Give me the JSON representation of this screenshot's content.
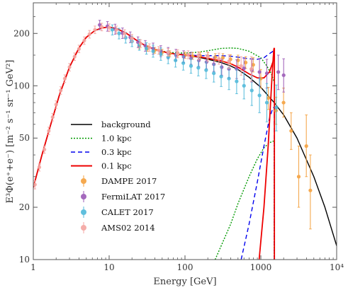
{
  "chart_data": {
    "type": "scatter",
    "xscale": "log",
    "yscale": "log",
    "xlim": [
      1,
      10000
    ],
    "ylim": [
      10,
      300
    ],
    "xlabel": "Energy [GeV]",
    "ylabel": "E³Φ(e⁺+e⁻) [m⁻² s⁻¹ sr⁻¹ GeV²]",
    "x_ticks": [
      {
        "value": 1,
        "label": "1"
      },
      {
        "value": 10,
        "label": "10"
      },
      {
        "value": 100,
        "label": "100"
      },
      {
        "value": 1000,
        "label": "1000"
      },
      {
        "value": 10000,
        "label": "10⁴"
      }
    ],
    "y_ticks": [
      {
        "value": 10,
        "label": "10"
      },
      {
        "value": 20,
        "label": "20"
      },
      {
        "value": 50,
        "label": "50"
      },
      {
        "value": 100,
        "label": "100"
      },
      {
        "value": 200,
        "label": "200"
      }
    ],
    "legend_position": "lower-left",
    "lines": [
      {
        "name": "background",
        "color": "#000000",
        "dash": "solid",
        "width": 1.4,
        "x": [
          1,
          1.3,
          1.7,
          2.2,
          3,
          4,
          5,
          6.5,
          8,
          10,
          13,
          17,
          22,
          30,
          40,
          55,
          70,
          100,
          150,
          200,
          300,
          400,
          500,
          700,
          1000,
          1500,
          2000,
          3000,
          5000,
          7000,
          10000
        ],
        "y": [
          26,
          40,
          60,
          88,
          128,
          165,
          190,
          208,
          215,
          218,
          212,
          200,
          185,
          170,
          162,
          156,
          153,
          150,
          146,
          142,
          136,
          130,
          124,
          112,
          98,
          80,
          68,
          50,
          30,
          20,
          12
        ]
      },
      {
        "name": "1.0 kpc",
        "color": "#009900",
        "dash": "2,2",
        "width": 1.4,
        "x": [
          1,
          1.3,
          1.7,
          2.2,
          3,
          4,
          5,
          6.5,
          8,
          10,
          13,
          17,
          22,
          30,
          40,
          55,
          70,
          100,
          150,
          200,
          300,
          400,
          500,
          700,
          1000,
          1200,
          1400,
          1500
        ],
        "y": [
          26,
          40,
          60,
          88,
          128,
          165,
          190,
          208,
          215,
          218,
          212,
          200,
          185,
          170,
          162,
          157,
          155,
          154,
          156,
          159,
          164,
          165,
          164,
          158,
          145,
          130,
          115,
          105
        ]
      },
      {
        "name": "0.3 kpc",
        "color": "#0000ee",
        "dash": "6,4",
        "width": 1.4,
        "x": [
          1,
          1.3,
          1.7,
          2.2,
          3,
          4,
          5,
          6.5,
          8,
          10,
          13,
          17,
          22,
          30,
          40,
          55,
          70,
          100,
          150,
          200,
          300,
          400,
          500,
          700,
          900,
          1100,
          1300,
          1450,
          1500
        ],
        "y": [
          26,
          40,
          60,
          88,
          128,
          165,
          190,
          208,
          215,
          218,
          212,
          200,
          185,
          170,
          162,
          156,
          153,
          151,
          149,
          149,
          149,
          148,
          146,
          143,
          142,
          145,
          153,
          158,
          150
        ]
      },
      {
        "name": "0.1 kpc",
        "color": "#ee0000",
        "dash": "solid",
        "width": 1.8,
        "x": [
          1,
          1.3,
          1.7,
          2.2,
          3,
          4,
          5,
          6.5,
          8,
          10,
          13,
          17,
          22,
          30,
          40,
          55,
          70,
          100,
          150,
          200,
          300,
          400,
          500,
          700,
          900,
          1100,
          1300,
          1450,
          1500
        ],
        "y": [
          26,
          40,
          60,
          88,
          128,
          165,
          190,
          208,
          215,
          218,
          212,
          200,
          185,
          170,
          162,
          156,
          153,
          150,
          147,
          144,
          139,
          134,
          128,
          117,
          111,
          111,
          120,
          138,
          165
        ]
      },
      {
        "name": "1.0 kpc component",
        "color": "#009900",
        "dash": "2,2",
        "width": 1.4,
        "x": [
          250,
          300,
          400,
          500,
          700,
          900,
          1100,
          1300,
          1450,
          1500
        ],
        "y": [
          10,
          12,
          16,
          21,
          30,
          38,
          44,
          47,
          48,
          48
        ]
      },
      {
        "name": "0.3 kpc component",
        "color": "#0000ee",
        "dash": "6,4",
        "width": 1.4,
        "x": [
          550,
          700,
          900,
          1100,
          1300,
          1450,
          1500
        ],
        "y": [
          10,
          16,
          28,
          45,
          65,
          75,
          75
        ]
      },
      {
        "name": "0.1 kpc component",
        "color": "#ee0000",
        "dash": "solid",
        "width": 1.8,
        "x": [
          950,
          1100,
          1250,
          1400,
          1480,
          1500
        ],
        "y": [
          10,
          20,
          45,
          110,
          160,
          165
        ]
      }
    ],
    "vertical_lines": [
      {
        "x": 1500,
        "color": "#009900",
        "from": 10,
        "to": 48,
        "dash": "2,2",
        "width": 1.4
      },
      {
        "x": 1505,
        "color": "#0000ee",
        "from": 10,
        "to": 75,
        "dash": "6,4",
        "width": 1.4
      },
      {
        "x": 1510,
        "color": "#ee0000",
        "from": 10,
        "to": 165,
        "dash": "solid",
        "width": 1.8
      }
    ],
    "legend_lines": [
      {
        "label": "background",
        "color": "#000000",
        "dash": "solid",
        "width": 1.6
      },
      {
        "label": "1.0 kpc",
        "color": "#009900",
        "dash": "2,2",
        "width": 1.6
      },
      {
        "label": "0.3 kpc",
        "color": "#0000ee",
        "dash": "6,4",
        "width": 1.6
      },
      {
        "label": "0.1 kpc",
        "color": "#ee0000",
        "dash": "solid",
        "width": 2
      }
    ],
    "series": [
      {
        "name": "DAMPE 2017",
        "color": "#f5a03c",
        "opacity": 0.9,
        "points": [
          {
            "x": 25,
            "y": 169,
            "lo": 163,
            "hi": 175
          },
          {
            "x": 32,
            "y": 164,
            "lo": 158,
            "hi": 170
          },
          {
            "x": 40,
            "y": 160,
            "lo": 154,
            "hi": 166
          },
          {
            "x": 50,
            "y": 156,
            "lo": 150,
            "hi": 162
          },
          {
            "x": 63,
            "y": 153,
            "lo": 147,
            "hi": 159
          },
          {
            "x": 80,
            "y": 151,
            "lo": 145,
            "hi": 157
          },
          {
            "x": 100,
            "y": 150,
            "lo": 144,
            "hi": 156
          },
          {
            "x": 126,
            "y": 148,
            "lo": 142,
            "hi": 155
          },
          {
            "x": 158,
            "y": 149,
            "lo": 142,
            "hi": 156
          },
          {
            "x": 200,
            "y": 148,
            "lo": 141,
            "hi": 155
          },
          {
            "x": 251,
            "y": 146,
            "lo": 139,
            "hi": 153
          },
          {
            "x": 316,
            "y": 145,
            "lo": 137,
            "hi": 153
          },
          {
            "x": 398,
            "y": 142,
            "lo": 134,
            "hi": 151
          },
          {
            "x": 501,
            "y": 140,
            "lo": 131,
            "hi": 150
          },
          {
            "x": 631,
            "y": 136,
            "lo": 126,
            "hi": 147
          },
          {
            "x": 794,
            "y": 132,
            "lo": 120,
            "hi": 145
          },
          {
            "x": 1000,
            "y": 110,
            "lo": 97,
            "hi": 124
          },
          {
            "x": 1259,
            "y": 85,
            "lo": 73,
            "hi": 98
          },
          {
            "x": 1585,
            "y": 72,
            "lo": 60,
            "hi": 86
          },
          {
            "x": 1995,
            "y": 80,
            "lo": 66,
            "hi": 97
          },
          {
            "x": 2512,
            "y": 55,
            "lo": 43,
            "hi": 70
          },
          {
            "x": 3162,
            "y": 30,
            "lo": 20,
            "hi": 45
          },
          {
            "x": 3981,
            "y": 45,
            "lo": 30,
            "hi": 68
          },
          {
            "x": 4500,
            "y": 25,
            "lo": 15,
            "hi": 40
          }
        ]
      },
      {
        "name": "FermiLAT 2017",
        "color": "#9b59b6",
        "opacity": 0.9,
        "points": [
          {
            "x": 7.5,
            "y": 224,
            "lo": 210,
            "hi": 238
          },
          {
            "x": 9.5,
            "y": 220,
            "lo": 206,
            "hi": 234
          },
          {
            "x": 12,
            "y": 212,
            "lo": 198,
            "hi": 226
          },
          {
            "x": 15,
            "y": 201,
            "lo": 187,
            "hi": 215
          },
          {
            "x": 19,
            "y": 190,
            "lo": 177,
            "hi": 204
          },
          {
            "x": 24,
            "y": 178,
            "lo": 166,
            "hi": 191
          },
          {
            "x": 30,
            "y": 170,
            "lo": 158,
            "hi": 182
          },
          {
            "x": 38,
            "y": 164,
            "lo": 152,
            "hi": 176
          },
          {
            "x": 48,
            "y": 158,
            "lo": 147,
            "hi": 170
          },
          {
            "x": 60,
            "y": 154,
            "lo": 143,
            "hi": 166
          },
          {
            "x": 76,
            "y": 150,
            "lo": 139,
            "hi": 162
          },
          {
            "x": 96,
            "y": 147,
            "lo": 136,
            "hi": 159
          },
          {
            "x": 120,
            "y": 144,
            "lo": 133,
            "hi": 156
          },
          {
            "x": 152,
            "y": 140,
            "lo": 129,
            "hi": 152
          },
          {
            "x": 192,
            "y": 137,
            "lo": 125,
            "hi": 150
          },
          {
            "x": 240,
            "y": 133,
            "lo": 121,
            "hi": 146
          },
          {
            "x": 305,
            "y": 128,
            "lo": 115,
            "hi": 142
          },
          {
            "x": 380,
            "y": 125,
            "lo": 111,
            "hi": 140
          },
          {
            "x": 480,
            "y": 125,
            "lo": 110,
            "hi": 141
          },
          {
            "x": 600,
            "y": 126,
            "lo": 109,
            "hi": 144
          },
          {
            "x": 760,
            "y": 123,
            "lo": 105,
            "hi": 143
          },
          {
            "x": 960,
            "y": 120,
            "lo": 100,
            "hi": 143
          },
          {
            "x": 1200,
            "y": 118,
            "lo": 97,
            "hi": 142
          },
          {
            "x": 1700,
            "y": 120,
            "lo": 95,
            "hi": 150
          },
          {
            "x": 2000,
            "y": 115,
            "lo": 92,
            "hi": 143
          }
        ]
      },
      {
        "name": "CALET 2017",
        "color": "#45b5d8",
        "opacity": 0.85,
        "points": [
          {
            "x": 11,
            "y": 210,
            "lo": 196,
            "hi": 224
          },
          {
            "x": 13.5,
            "y": 200,
            "lo": 186,
            "hi": 214
          },
          {
            "x": 16.5,
            "y": 189,
            "lo": 176,
            "hi": 203
          },
          {
            "x": 20,
            "y": 180,
            "lo": 168,
            "hi": 193
          },
          {
            "x": 25,
            "y": 172,
            "lo": 160,
            "hi": 185
          },
          {
            "x": 31,
            "y": 164,
            "lo": 152,
            "hi": 177
          },
          {
            "x": 38,
            "y": 158,
            "lo": 146,
            "hi": 171
          },
          {
            "x": 48,
            "y": 152,
            "lo": 140,
            "hi": 165
          },
          {
            "x": 60,
            "y": 146,
            "lo": 134,
            "hi": 159
          },
          {
            "x": 75,
            "y": 140,
            "lo": 128,
            "hi": 153
          },
          {
            "x": 95,
            "y": 135,
            "lo": 123,
            "hi": 148
          },
          {
            "x": 120,
            "y": 130,
            "lo": 118,
            "hi": 143
          },
          {
            "x": 150,
            "y": 127,
            "lo": 114,
            "hi": 141
          },
          {
            "x": 190,
            "y": 123,
            "lo": 110,
            "hi": 137
          },
          {
            "x": 240,
            "y": 118,
            "lo": 105,
            "hi": 133
          },
          {
            "x": 300,
            "y": 113,
            "lo": 99,
            "hi": 129
          },
          {
            "x": 380,
            "y": 110,
            "lo": 95,
            "hi": 127
          },
          {
            "x": 480,
            "y": 106,
            "lo": 90,
            "hi": 124
          },
          {
            "x": 600,
            "y": 100,
            "lo": 84,
            "hi": 118
          },
          {
            "x": 760,
            "y": 94,
            "lo": 77,
            "hi": 114
          },
          {
            "x": 960,
            "y": 88,
            "lo": 70,
            "hi": 110
          },
          {
            "x": 1200,
            "y": 80,
            "lo": 62,
            "hi": 103
          },
          {
            "x": 1600,
            "y": 75,
            "lo": 55,
            "hi": 101
          }
        ]
      },
      {
        "name": "AMS02 2014",
        "color": "#f4a5a0",
        "opacity": 0.9,
        "points": [
          {
            "x": 1.05,
            "y": 27,
            "lo": 25.5,
            "hi": 28.5
          },
          {
            "x": 1.2,
            "y": 34,
            "lo": 32.3,
            "hi": 35.7
          },
          {
            "x": 1.4,
            "y": 43,
            "lo": 40.9,
            "hi": 45.1
          },
          {
            "x": 1.6,
            "y": 55,
            "lo": 52.3,
            "hi": 57.8
          },
          {
            "x": 1.8,
            "y": 66,
            "lo": 62.7,
            "hi": 69.3
          },
          {
            "x": 2.0,
            "y": 78,
            "lo": 74.1,
            "hi": 81.9
          },
          {
            "x": 2.3,
            "y": 94,
            "lo": 89.3,
            "hi": 98.7
          },
          {
            "x": 2.6,
            "y": 110,
            "lo": 104.5,
            "hi": 115.5
          },
          {
            "x": 3.0,
            "y": 128,
            "lo": 121.6,
            "hi": 134.4
          },
          {
            "x": 3.5,
            "y": 147,
            "lo": 139.7,
            "hi": 154.4
          },
          {
            "x": 4.0,
            "y": 163,
            "lo": 154.9,
            "hi": 171.2
          },
          {
            "x": 4.7,
            "y": 182,
            "lo": 172.9,
            "hi": 191.1
          },
          {
            "x": 5.5,
            "y": 198,
            "lo": 188,
            "hi": 208
          },
          {
            "x": 6.5,
            "y": 210,
            "lo": 199.5,
            "hi": 220.5
          },
          {
            "x": 8,
            "y": 218,
            "lo": 207,
            "hi": 229
          },
          {
            "x": 10,
            "y": 216,
            "lo": 205,
            "hi": 227
          },
          {
            "x": 12.5,
            "y": 210,
            "lo": 199.5,
            "hi": 220.5
          },
          {
            "x": 16,
            "y": 200,
            "lo": 190,
            "hi": 210
          },
          {
            "x": 20,
            "y": 188,
            "lo": 178.6,
            "hi": 197.4
          },
          {
            "x": 26,
            "y": 175,
            "lo": 166,
            "hi": 184
          },
          {
            "x": 34,
            "y": 166,
            "lo": 157.7,
            "hi": 174.3
          },
          {
            "x": 45,
            "y": 160,
            "lo": 152,
            "hi": 168
          },
          {
            "x": 60,
            "y": 156,
            "lo": 148,
            "hi": 164
          },
          {
            "x": 80,
            "y": 153,
            "lo": 145,
            "hi": 161
          },
          {
            "x": 110,
            "y": 151,
            "lo": 143,
            "hi": 159
          },
          {
            "x": 150,
            "y": 149,
            "lo": 141,
            "hi": 157
          },
          {
            "x": 200,
            "y": 147,
            "lo": 138,
            "hi": 156
          },
          {
            "x": 280,
            "y": 143,
            "lo": 133,
            "hi": 154
          },
          {
            "x": 380,
            "y": 138,
            "lo": 126,
            "hi": 151
          },
          {
            "x": 550,
            "y": 130,
            "lo": 115,
            "hi": 147
          },
          {
            "x": 750,
            "y": 125,
            "lo": 106,
            "hi": 147
          }
        ]
      }
    ]
  }
}
